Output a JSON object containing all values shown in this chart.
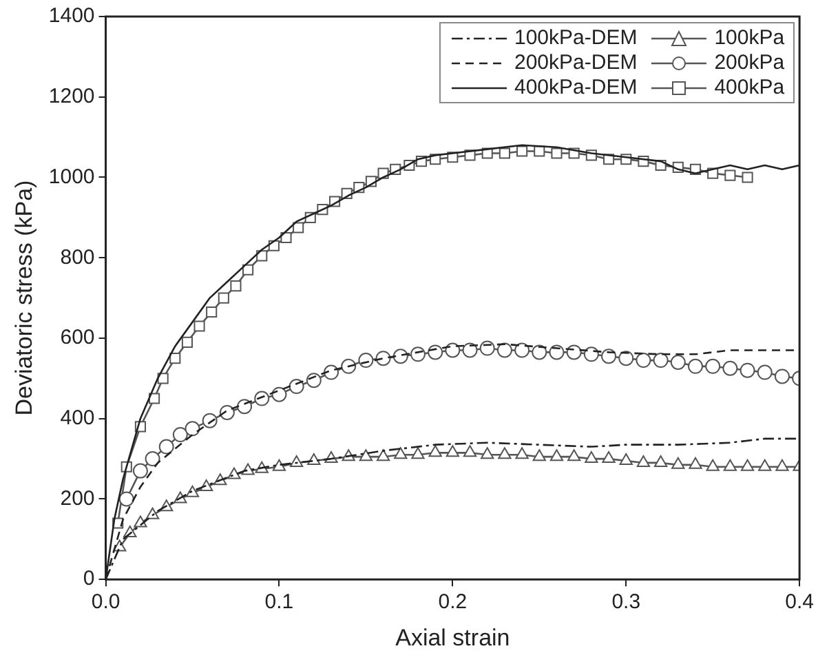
{
  "chart_data": {
    "type": "line",
    "xlabel": "Axial strain",
    "ylabel": "Deviatoric stress (kPa)",
    "xlim": [
      0,
      0.4
    ],
    "ylim": [
      0,
      1400
    ],
    "xticks": [
      {
        "value": 0,
        "label": "0.0"
      },
      0.1,
      0.2,
      0.3,
      0.4
    ],
    "yticks": [
      0,
      200,
      400,
      600,
      800,
      1000,
      1200,
      1400
    ],
    "grid": false,
    "legend": "top right",
    "series": [
      {
        "name": "100kPa-DEM",
        "color": "#222222",
        "line_style": "dashdot",
        "marker": "none",
        "x": [
          0,
          0.01,
          0.03,
          0.05,
          0.08,
          0.1,
          0.13,
          0.16,
          0.19,
          0.22,
          0.25,
          0.28,
          0.3,
          0.33,
          0.36,
          0.38,
          0.4
        ],
        "values": [
          0,
          100,
          170,
          220,
          270,
          285,
          300,
          320,
          335,
          340,
          335,
          330,
          335,
          335,
          340,
          350,
          350
        ]
      },
      {
        "name": "200kPa-DEM",
        "color": "#222222",
        "line_style": "dashed",
        "marker": "none",
        "x": [
          0,
          0.01,
          0.02,
          0.03,
          0.05,
          0.07,
          0.1,
          0.13,
          0.16,
          0.2,
          0.23,
          0.26,
          0.29,
          0.32,
          0.34,
          0.36,
          0.4
        ],
        "values": [
          0,
          150,
          230,
          290,
          360,
          420,
          470,
          520,
          550,
          580,
          585,
          575,
          565,
          560,
          560,
          570,
          570
        ]
      },
      {
        "name": "400kPa-DEM",
        "color": "#222222",
        "line_style": "solid",
        "marker": "none",
        "x": [
          0,
          0.005,
          0.01,
          0.02,
          0.03,
          0.04,
          0.05,
          0.06,
          0.07,
          0.08,
          0.09,
          0.1,
          0.11,
          0.12,
          0.13,
          0.14,
          0.15,
          0.16,
          0.17,
          0.18,
          0.19,
          0.2,
          0.22,
          0.24,
          0.26,
          0.28,
          0.3,
          0.32,
          0.33,
          0.34,
          0.35,
          0.36,
          0.37,
          0.38,
          0.39,
          0.4
        ],
        "values": [
          0,
          150,
          250,
          400,
          500,
          580,
          640,
          700,
          740,
          780,
          820,
          850,
          890,
          910,
          930,
          955,
          975,
          1000,
          1020,
          1045,
          1055,
          1060,
          1070,
          1080,
          1075,
          1060,
          1050,
          1040,
          1020,
          1010,
          1020,
          1030,
          1020,
          1030,
          1020,
          1030
        ]
      },
      {
        "name": "100kPa",
        "color": "#555555",
        "line_style": "solid",
        "marker": "triangle",
        "x": [
          0.008,
          0.014,
          0.02,
          0.027,
          0.035,
          0.043,
          0.05,
          0.058,
          0.066,
          0.074,
          0.082,
          0.09,
          0.1,
          0.11,
          0.12,
          0.13,
          0.14,
          0.15,
          0.16,
          0.17,
          0.18,
          0.19,
          0.2,
          0.21,
          0.22,
          0.23,
          0.24,
          0.25,
          0.26,
          0.27,
          0.28,
          0.29,
          0.3,
          0.31,
          0.32,
          0.33,
          0.34,
          0.35,
          0.36,
          0.37,
          0.38,
          0.39,
          0.4
        ],
        "values": [
          80,
          115,
          140,
          160,
          180,
          200,
          215,
          230,
          245,
          260,
          270,
          275,
          280,
          290,
          295,
          300,
          305,
          305,
          305,
          310,
          310,
          315,
          315,
          315,
          310,
          310,
          310,
          305,
          305,
          305,
          300,
          300,
          295,
          290,
          290,
          285,
          285,
          280,
          280,
          280,
          280,
          280,
          280
        ]
      },
      {
        "name": "200kPa",
        "color": "#555555",
        "line_style": "solid",
        "marker": "circle",
        "x": [
          0.012,
          0.02,
          0.027,
          0.035,
          0.043,
          0.05,
          0.06,
          0.07,
          0.08,
          0.09,
          0.1,
          0.11,
          0.12,
          0.13,
          0.14,
          0.15,
          0.16,
          0.17,
          0.18,
          0.19,
          0.2,
          0.21,
          0.22,
          0.23,
          0.24,
          0.25,
          0.26,
          0.27,
          0.28,
          0.29,
          0.3,
          0.31,
          0.32,
          0.33,
          0.34,
          0.35,
          0.36,
          0.37,
          0.38,
          0.39,
          0.4
        ],
        "values": [
          200,
          270,
          300,
          330,
          360,
          375,
          395,
          415,
          430,
          450,
          460,
          480,
          495,
          515,
          530,
          545,
          550,
          555,
          560,
          565,
          570,
          570,
          575,
          570,
          570,
          565,
          565,
          565,
          560,
          555,
          550,
          545,
          545,
          540,
          530,
          530,
          525,
          520,
          515,
          505,
          500
        ]
      },
      {
        "name": "400kPa",
        "color": "#555555",
        "line_style": "solid",
        "marker": "square",
        "x": [
          0.007,
          0.012,
          0.02,
          0.028,
          0.033,
          0.04,
          0.047,
          0.054,
          0.061,
          0.068,
          0.075,
          0.082,
          0.09,
          0.097,
          0.104,
          0.111,
          0.118,
          0.125,
          0.132,
          0.139,
          0.146,
          0.153,
          0.16,
          0.167,
          0.175,
          0.182,
          0.19,
          0.2,
          0.21,
          0.22,
          0.23,
          0.24,
          0.25,
          0.26,
          0.27,
          0.28,
          0.29,
          0.3,
          0.31,
          0.32,
          0.33,
          0.34,
          0.35,
          0.36,
          0.37
        ],
        "values": [
          140,
          280,
          380,
          450,
          500,
          550,
          590,
          630,
          665,
          700,
          730,
          770,
          805,
          830,
          850,
          875,
          900,
          920,
          940,
          960,
          975,
          990,
          1010,
          1020,
          1030,
          1040,
          1045,
          1050,
          1055,
          1060,
          1060,
          1065,
          1065,
          1060,
          1060,
          1055,
          1045,
          1045,
          1040,
          1030,
          1025,
          1020,
          1010,
          1005,
          1000
        ]
      }
    ]
  }
}
